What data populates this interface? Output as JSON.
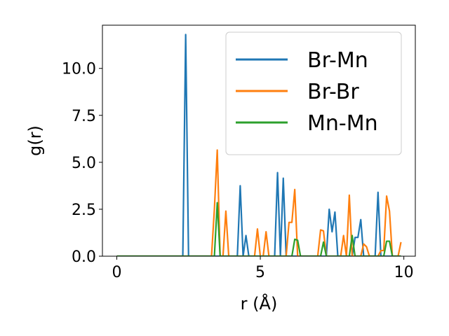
{
  "chart_data": {
    "type": "line",
    "xlabel": "r (Å)",
    "ylabel": "g(r)",
    "xlim": [
      -0.5,
      10.4
    ],
    "ylim": [
      0,
      12.3
    ],
    "xticks": [
      0,
      5,
      10
    ],
    "xtick_labels": [
      "0",
      "5",
      "10"
    ],
    "yticks": [
      0.0,
      2.5,
      5.0,
      7.5,
      10.0
    ],
    "ytick_labels": [
      "0.0",
      "2.5",
      "5.0",
      "7.5",
      "10.0"
    ],
    "legend_position": "top-right",
    "grid": false,
    "series": [
      {
        "name": "Br-Mn",
        "color": "#1f77b4",
        "x": [
          0,
          2.2,
          2.3,
          2.4,
          2.5,
          2.6,
          4.1,
          4.2,
          4.3,
          4.4,
          4.5,
          4.6,
          4.7,
          5.5,
          5.6,
          5.7,
          5.8,
          5.9,
          7.2,
          7.3,
          7.4,
          7.5,
          7.6,
          7.7,
          7.8,
          8.2,
          8.3,
          8.4,
          8.5,
          8.6,
          8.9,
          9.0,
          9.1,
          9.2,
          9.9
        ],
        "y": [
          0,
          0,
          0,
          11.8,
          0,
          0,
          0,
          0,
          3.75,
          0,
          1.1,
          0,
          0,
          0,
          4.45,
          0,
          4.15,
          0,
          0,
          0,
          2.5,
          1.3,
          2.35,
          0,
          0,
          0,
          1.0,
          1.0,
          1.95,
          0,
          0,
          0,
          3.4,
          0,
          0
        ]
      },
      {
        "name": "Br-Br",
        "color": "#ff7f0e",
        "x": [
          0,
          3.3,
          3.4,
          3.5,
          3.6,
          3.7,
          3.8,
          3.9,
          4.8,
          4.9,
          5.0,
          5.1,
          5.2,
          5.3,
          5.9,
          6.0,
          6.1,
          6.2,
          6.3,
          6.4,
          7.0,
          7.1,
          7.2,
          7.3,
          7.8,
          7.9,
          8.0,
          8.1,
          8.2,
          8.5,
          8.6,
          8.7,
          8.8,
          9.1,
          9.2,
          9.3,
          9.4,
          9.5,
          9.6,
          9.8,
          9.9
        ],
        "y": [
          0,
          0,
          2.5,
          5.65,
          0,
          0,
          2.4,
          0,
          0,
          1.45,
          0,
          0,
          1.3,
          0,
          0,
          1.8,
          1.8,
          3.55,
          0,
          0,
          0,
          1.4,
          1.35,
          0,
          0,
          1.1,
          0,
          3.25,
          0,
          0,
          0.65,
          0.5,
          0,
          0,
          0.3,
          0.3,
          3.2,
          2.4,
          0,
          0,
          0.75
        ]
      },
      {
        "name": "Mn-Mn",
        "color": "#2ca02c",
        "x": [
          0,
          3.4,
          3.5,
          3.6,
          6.1,
          6.2,
          6.3,
          6.4,
          7.1,
          7.2,
          7.3,
          8.1,
          8.2,
          8.3,
          9.3,
          9.4,
          9.5,
          9.6,
          9.9
        ],
        "y": [
          0,
          0,
          2.85,
          0,
          0,
          0.9,
          0.85,
          0,
          0,
          0.75,
          0,
          0,
          1.1,
          0,
          0,
          0.8,
          0.8,
          0,
          0
        ]
      }
    ]
  }
}
